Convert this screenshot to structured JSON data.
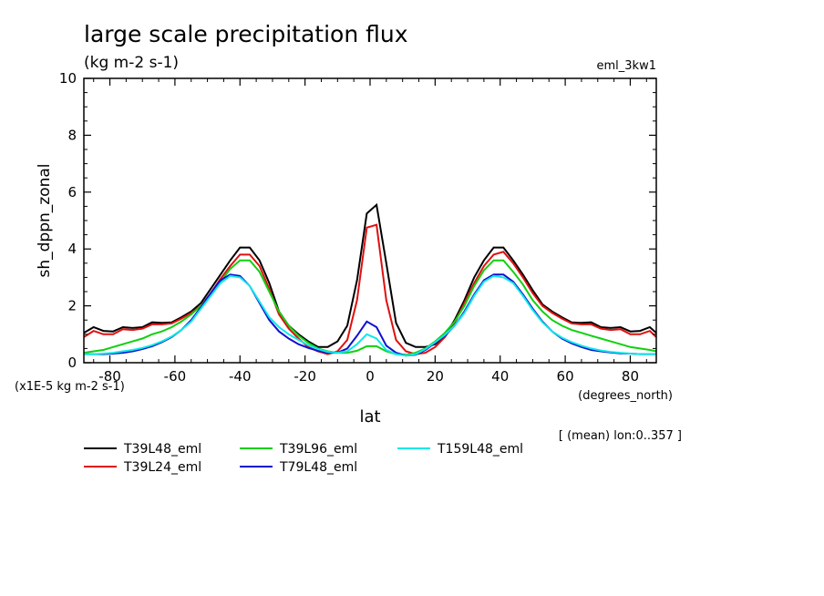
{
  "chart_data": {
    "type": "line",
    "title": "large scale precipitation flux",
    "subtitle": "(kg m-2 s-1)",
    "experiment": "eml_3kw1",
    "xlabel": "lat",
    "x_units": "(degrees_north)",
    "ylabel": "sh_dppn_zonal",
    "y_units": "(x1E-5 kg m-2 s-1)",
    "footnote": "[ (mean) lon:0..357 ]",
    "xlim": [
      -88,
      88
    ],
    "ylim": [
      0,
      10
    ],
    "x_ticks": [
      -80,
      -60,
      -40,
      -20,
      0,
      20,
      40,
      60,
      80
    ],
    "y_ticks": [
      0,
      2,
      4,
      6,
      8,
      10
    ],
    "grid": false,
    "legend_position": "bottom",
    "series": [
      {
        "name": "T39L48_eml",
        "color": "#000000",
        "x": [
          -88,
          -85,
          -82,
          -79,
          -76,
          -73,
          -70,
          -67,
          -64,
          -61,
          -58,
          -55,
          -52,
          -49,
          -46,
          -43,
          -40,
          -37,
          -34,
          -31,
          -28,
          -25,
          -22,
          -19,
          -16,
          -13,
          -10,
          -7,
          -4,
          -1,
          2,
          5,
          8,
          11,
          14,
          17,
          20,
          23,
          26,
          29,
          32,
          35,
          38,
          41,
          44,
          47,
          50,
          53,
          56,
          59,
          62,
          65,
          68,
          71,
          74,
          77,
          80,
          83,
          86,
          88
        ],
        "y": [
          1.05,
          1.25,
          1.12,
          1.1,
          1.25,
          1.22,
          1.25,
          1.42,
          1.4,
          1.42,
          1.6,
          1.8,
          2.1,
          2.6,
          3.1,
          3.6,
          4.05,
          4.05,
          3.6,
          2.8,
          1.8,
          1.3,
          1.0,
          0.75,
          0.55,
          0.55,
          0.75,
          1.3,
          2.9,
          5.25,
          5.55,
          3.5,
          1.4,
          0.7,
          0.55,
          0.55,
          0.65,
          0.95,
          1.5,
          2.2,
          3.0,
          3.6,
          4.05,
          4.05,
          3.6,
          3.1,
          2.55,
          2.05,
          1.8,
          1.6,
          1.42,
          1.4,
          1.42,
          1.25,
          1.22,
          1.25,
          1.1,
          1.12,
          1.25,
          1.05
        ]
      },
      {
        "name": "T39L24_eml",
        "color": "#e01010",
        "x": [
          -88,
          -85,
          -82,
          -79,
          -76,
          -73,
          -70,
          -67,
          -64,
          -61,
          -58,
          -55,
          -52,
          -49,
          -46,
          -43,
          -40,
          -37,
          -34,
          -31,
          -28,
          -25,
          -22,
          -19,
          -16,
          -13,
          -10,
          -7,
          -4,
          -1,
          2,
          5,
          8,
          11,
          14,
          17,
          20,
          23,
          26,
          29,
          32,
          35,
          38,
          41,
          44,
          47,
          50,
          53,
          56,
          59,
          62,
          65,
          68,
          71,
          74,
          77,
          80,
          83,
          86,
          88
        ],
        "y": [
          0.9,
          1.12,
          1.0,
          1.0,
          1.18,
          1.15,
          1.2,
          1.35,
          1.35,
          1.38,
          1.55,
          1.75,
          2.0,
          2.45,
          2.95,
          3.4,
          3.8,
          3.8,
          3.4,
          2.6,
          1.7,
          1.2,
          0.85,
          0.55,
          0.4,
          0.3,
          0.4,
          0.8,
          2.2,
          4.75,
          4.85,
          2.2,
          0.8,
          0.4,
          0.3,
          0.35,
          0.55,
          0.9,
          1.4,
          2.1,
          2.8,
          3.4,
          3.8,
          3.9,
          3.5,
          3.0,
          2.45,
          2.0,
          1.75,
          1.55,
          1.38,
          1.35,
          1.35,
          1.2,
          1.15,
          1.18,
          1.0,
          1.0,
          1.12,
          0.9
        ]
      },
      {
        "name": "T39L96_eml",
        "color": "#10d010",
        "x": [
          -88,
          -85,
          -82,
          -79,
          -76,
          -73,
          -70,
          -67,
          -64,
          -61,
          -58,
          -55,
          -52,
          -49,
          -46,
          -43,
          -40,
          -37,
          -34,
          -31,
          -28,
          -25,
          -22,
          -19,
          -16,
          -13,
          -10,
          -7,
          -4,
          -1,
          2,
          5,
          8,
          11,
          14,
          17,
          20,
          23,
          26,
          29,
          32,
          35,
          38,
          41,
          44,
          47,
          50,
          53,
          56,
          59,
          62,
          65,
          68,
          71,
          74,
          77,
          80,
          83,
          86,
          88
        ],
        "y": [
          0.35,
          0.4,
          0.45,
          0.55,
          0.65,
          0.75,
          0.85,
          1.0,
          1.1,
          1.25,
          1.45,
          1.7,
          2.0,
          2.4,
          2.85,
          3.3,
          3.6,
          3.6,
          3.2,
          2.5,
          1.8,
          1.3,
          0.95,
          0.7,
          0.5,
          0.4,
          0.35,
          0.35,
          0.42,
          0.58,
          0.58,
          0.4,
          0.3,
          0.28,
          0.35,
          0.5,
          0.75,
          1.05,
          1.45,
          2.0,
          2.7,
          3.25,
          3.6,
          3.6,
          3.2,
          2.75,
          2.2,
          1.8,
          1.5,
          1.3,
          1.15,
          1.05,
          0.95,
          0.85,
          0.75,
          0.65,
          0.55,
          0.5,
          0.45,
          0.4
        ]
      },
      {
        "name": "T79L48_eml",
        "color": "#1010d0",
        "x": [
          -88,
          -85,
          -82,
          -79,
          -76,
          -73,
          -70,
          -67,
          -64,
          -61,
          -58,
          -55,
          -52,
          -49,
          -46,
          -43,
          -40,
          -37,
          -34,
          -31,
          -28,
          -25,
          -22,
          -19,
          -16,
          -13,
          -10,
          -7,
          -4,
          -1,
          2,
          5,
          8,
          11,
          14,
          17,
          20,
          23,
          26,
          29,
          32,
          35,
          38,
          41,
          44,
          47,
          50,
          53,
          56,
          59,
          62,
          65,
          68,
          71,
          74,
          77,
          80,
          83,
          86,
          88
        ],
        "y": [
          0.3,
          0.3,
          0.3,
          0.32,
          0.35,
          0.4,
          0.48,
          0.58,
          0.72,
          0.9,
          1.15,
          1.5,
          1.95,
          2.45,
          2.9,
          3.1,
          3.05,
          2.7,
          2.1,
          1.5,
          1.1,
          0.85,
          0.65,
          0.52,
          0.42,
          0.35,
          0.35,
          0.5,
          0.95,
          1.45,
          1.25,
          0.6,
          0.35,
          0.25,
          0.28,
          0.45,
          0.7,
          0.95,
          1.3,
          1.8,
          2.4,
          2.9,
          3.1,
          3.1,
          2.85,
          2.4,
          1.9,
          1.45,
          1.1,
          0.85,
          0.68,
          0.55,
          0.45,
          0.4,
          0.36,
          0.33,
          0.32,
          0.3,
          0.3,
          0.3
        ]
      },
      {
        "name": "T159L48_eml",
        "color": "#10e8e8",
        "x": [
          -88,
          -85,
          -82,
          -79,
          -76,
          -73,
          -70,
          -67,
          -64,
          -61,
          -58,
          -55,
          -52,
          -49,
          -46,
          -43,
          -40,
          -37,
          -34,
          -31,
          -28,
          -25,
          -22,
          -19,
          -16,
          -13,
          -10,
          -7,
          -4,
          -1,
          2,
          5,
          8,
          11,
          14,
          17,
          20,
          23,
          26,
          29,
          32,
          35,
          38,
          41,
          44,
          47,
          50,
          53,
          56,
          59,
          62,
          65,
          68,
          71,
          74,
          77,
          80,
          83,
          86,
          88
        ],
        "y": [
          0.3,
          0.3,
          0.32,
          0.35,
          0.4,
          0.45,
          0.52,
          0.62,
          0.75,
          0.92,
          1.15,
          1.45,
          1.9,
          2.35,
          2.8,
          3.05,
          3.0,
          2.7,
          2.15,
          1.6,
          1.25,
          1.0,
          0.8,
          0.62,
          0.48,
          0.38,
          0.35,
          0.4,
          0.65,
          1.0,
          0.85,
          0.45,
          0.3,
          0.25,
          0.3,
          0.48,
          0.72,
          0.98,
          1.3,
          1.75,
          2.35,
          2.85,
          3.05,
          3.0,
          2.8,
          2.35,
          1.85,
          1.42,
          1.1,
          0.88,
          0.72,
          0.6,
          0.5,
          0.43,
          0.38,
          0.35,
          0.32,
          0.3,
          0.3,
          0.3
        ]
      }
    ]
  }
}
